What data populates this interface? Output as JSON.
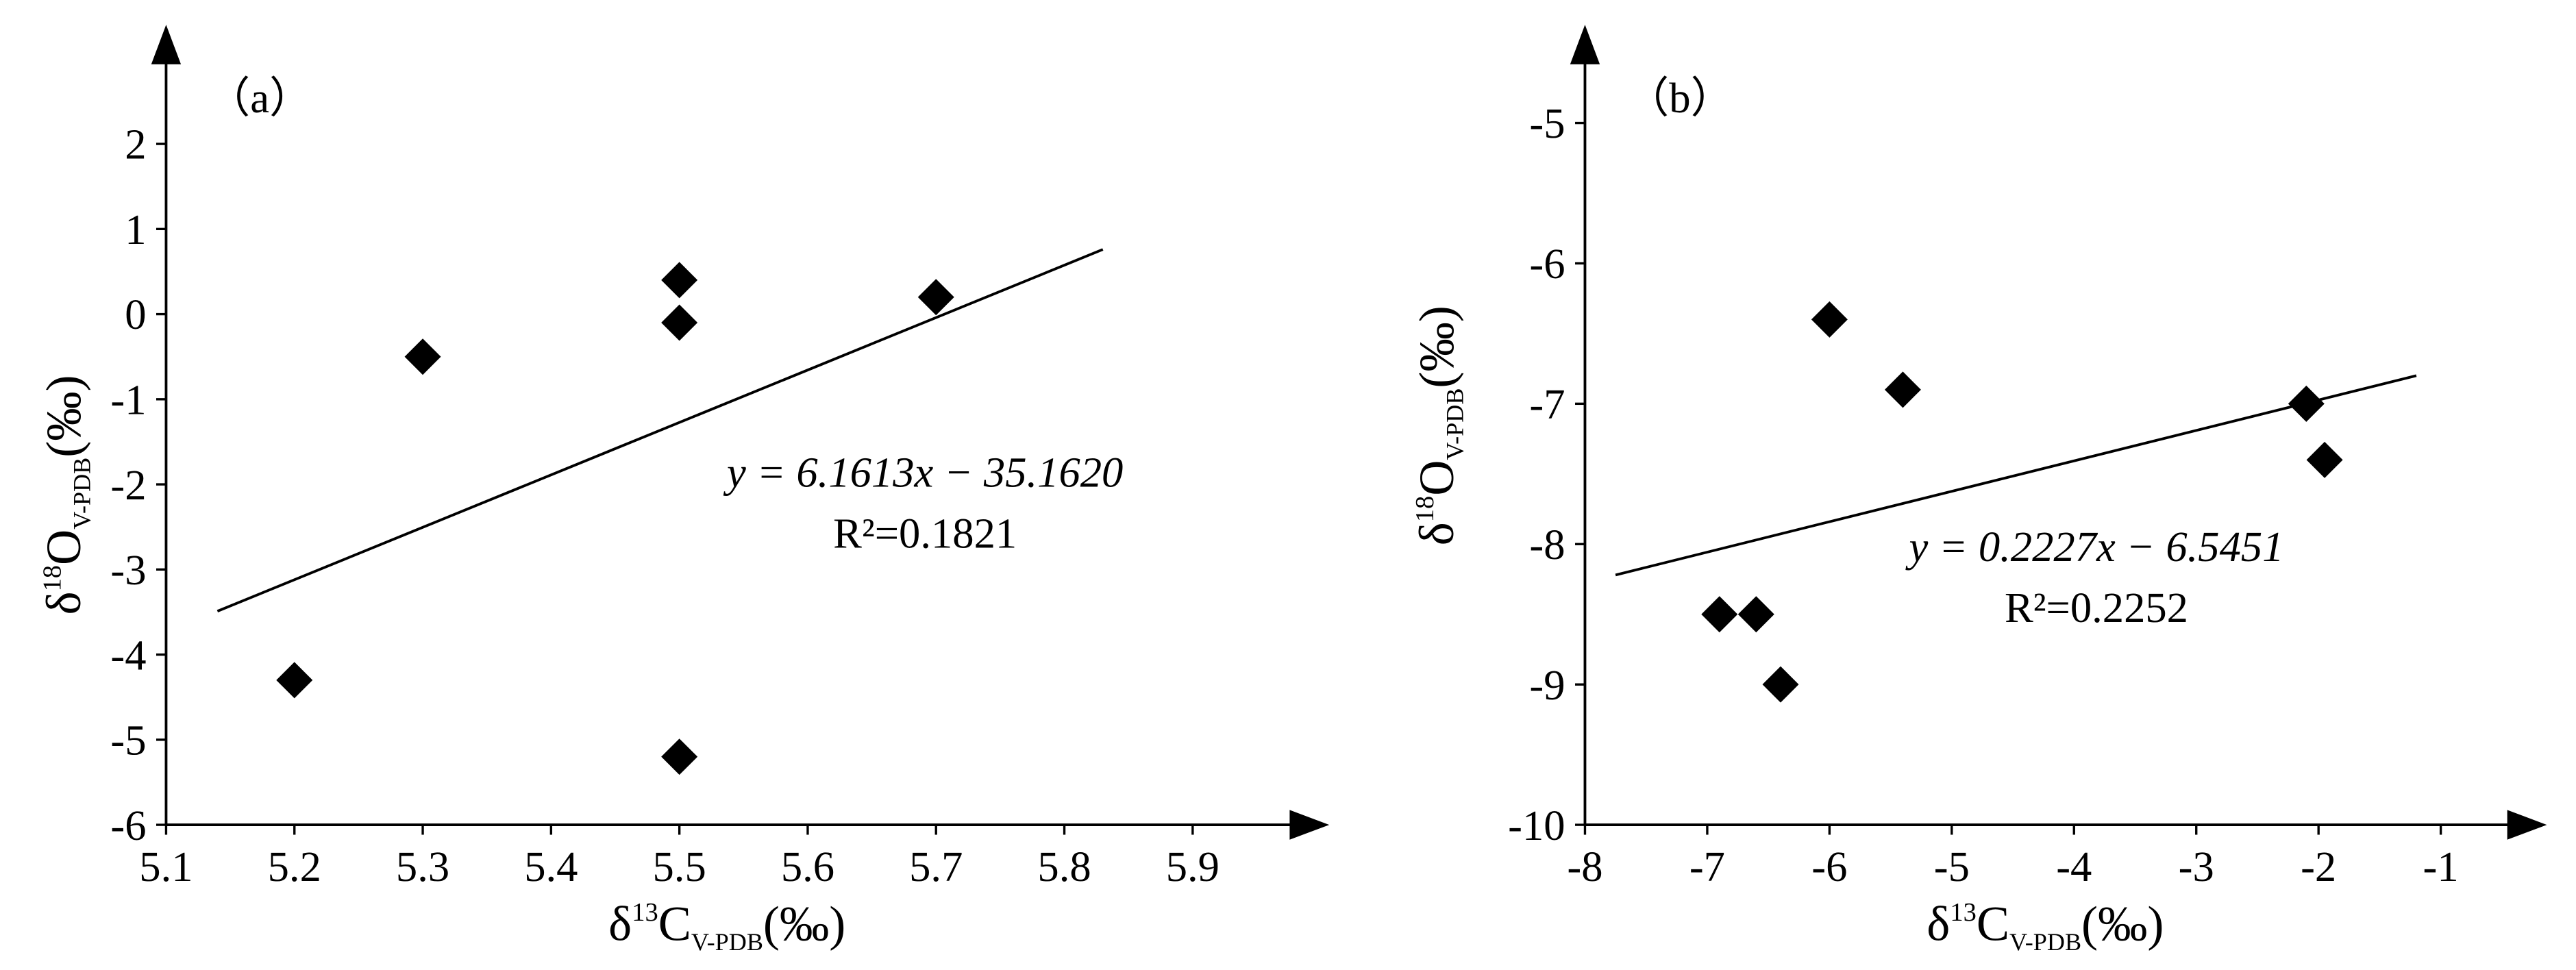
{
  "chart_data": [
    {
      "type": "scatter",
      "panel_label": "（a）",
      "x": [
        5.2,
        5.3,
        5.5,
        5.5,
        5.5,
        5.7
      ],
      "values": [
        -4.3,
        -0.5,
        0.4,
        -0.1,
        -5.2,
        0.2
      ],
      "color": "#000000",
      "trendline": {
        "x": [
          5.14,
          5.83
        ],
        "values": [
          -3.49,
          0.76
        ]
      },
      "equation": "y = 6.1613x − 35.1620",
      "r_squared": "R²=0.1821",
      "xlabel": {
        "symbol": "δ",
        "sup": "13",
        "main": "C",
        "sub": "V-PDB",
        "unit": "(‰)"
      },
      "ylabel": {
        "symbol": "δ",
        "sup": "18",
        "main": "O",
        "sub": "V-PDB",
        "unit": "(‰)"
      },
      "xlim": [
        5.1,
        6.0
      ],
      "xticks": [
        5.1,
        5.2,
        5.3,
        5.4,
        5.5,
        5.6,
        5.7,
        5.8,
        5.9
      ],
      "ylim": [
        -6,
        3.4
      ],
      "yticks": [
        -6,
        -5,
        -4,
        -3,
        -2,
        -1,
        0,
        1,
        2
      ]
    },
    {
      "type": "scatter",
      "panel_label": "（b）",
      "x": [
        -6.9,
        -6.6,
        -6.4,
        -6.0,
        -5.4,
        -2.1,
        -1.95
      ],
      "values": [
        -8.5,
        -8.5,
        -9.0,
        -6.4,
        -6.9,
        -7.0,
        -7.4
      ],
      "color": "#000000",
      "trendline": {
        "x": [
          -7.75,
          -1.2
        ],
        "values": [
          -8.22,
          -6.8
        ]
      },
      "equation": "y = 0.2227x − 6.5451",
      "r_squared": "R²=0.2252",
      "xlabel": {
        "symbol": "δ",
        "sup": "13",
        "main": "C",
        "sub": "V-PDB",
        "unit": "(‰)"
      },
      "ylabel": {
        "symbol": "δ",
        "sup": "18",
        "main": "O",
        "sub": "V-PDB",
        "unit": "(‰)"
      },
      "xlim": [
        -8,
        -0.2
      ],
      "xticks": [
        -8,
        -7,
        -6,
        -5,
        -4,
        -3,
        -2,
        -1
      ],
      "ylim": [
        -10,
        -4.3
      ],
      "yticks": [
        -10,
        -9,
        -8,
        -7,
        -6,
        -5
      ]
    }
  ]
}
